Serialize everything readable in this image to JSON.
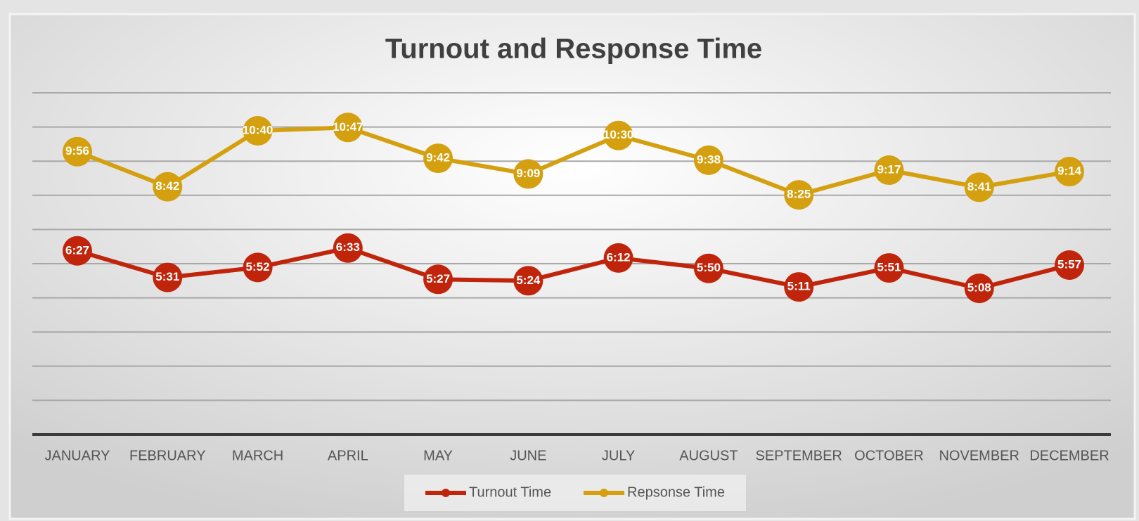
{
  "chart_data": {
    "type": "line",
    "title": "Turnout and Response Time",
    "categories": [
      "JANUARY",
      "FEBRUARY",
      "MARCH",
      "APRIL",
      "MAY",
      "JUNE",
      "JULY",
      "AUGUST",
      "SEPTEMBER",
      "OCTOBER",
      "NOVEMBER",
      "DECEMBER"
    ],
    "series": [
      {
        "name": "Turnout Time",
        "color": "#c0250c",
        "values": [
          387,
          331,
          352,
          393,
          327,
          324,
          372,
          350,
          311,
          351,
          308,
          357
        ],
        "value_labels": [
          "6:27",
          "5:31",
          "5:52",
          "6:33",
          "5:27",
          "5:24",
          "6:12",
          "5:50",
          "5:11",
          "5:51",
          "5:08",
          "5:57"
        ]
      },
      {
        "name": "Repsonse Time",
        "color": "#d4a00f",
        "values": [
          596,
          522,
          640,
          647,
          582,
          549,
          630,
          578,
          505,
          557,
          521,
          554
        ],
        "value_labels": [
          "9:56",
          "8:42",
          "10:40",
          "10:47",
          "9:42",
          "9:09",
          "10:30",
          "9:38",
          "8:25",
          "9:17",
          "8:41",
          "9:14"
        ]
      }
    ],
    "ylim": [
      0,
      720
    ],
    "yticks": [
      0,
      72,
      144,
      216,
      288,
      360,
      432,
      504,
      576,
      648,
      720
    ],
    "grid": true,
    "legend": "bottom"
  }
}
